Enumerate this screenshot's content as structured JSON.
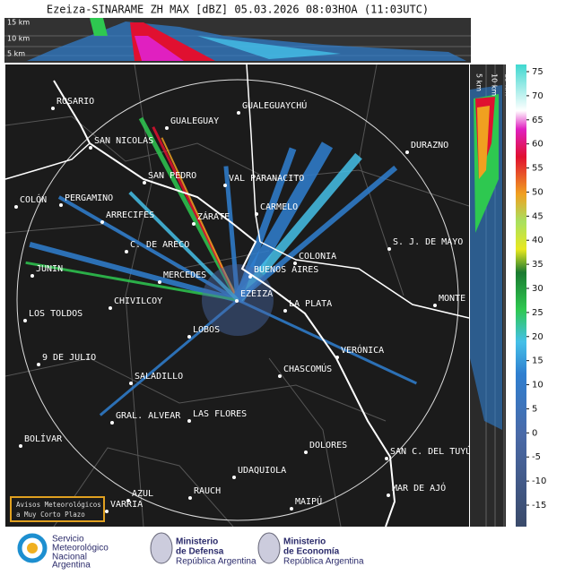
{
  "header": {
    "title": "Ezeiza-SINARAME ZH MAX [dBZ] 05.03.2026 08:03HOA (11:03UTC)"
  },
  "top_panel": {
    "altitudes": [
      "15 km",
      "10 km",
      "5 km"
    ]
  },
  "side_panel": {
    "altitudes": [
      "5 km",
      "10 km",
      "15 km"
    ]
  },
  "cities": [
    "ROSARIO",
    "GUALEGUAYCHÚ",
    "GUALEGUAY",
    "SAN NICOLAS",
    "DURAZNO",
    "SAN PEDRO",
    "VAL PARANACITO",
    "COLÓN",
    "PERGAMINO",
    "CARMELO",
    "ARRECIFES",
    "ZÁRATE",
    "S. J. DE MAYO",
    "C. DE ARECO",
    "COLONIA",
    "BUENOS AIRES",
    "JUNIN",
    "MERCEDES",
    "EZEIZA",
    "MONTE",
    "CHIVILCOY",
    "LA PLATA",
    "LOS TOLDOS",
    "LOBOS",
    "VERÓNICA",
    "9 DE JULIO",
    "CHASCOMÚS",
    "SALADILLO",
    "GRAL. ALVEAR",
    "LAS FLORES",
    "BOLÍVAR",
    "DOLORES",
    "SAN C. DEL TUYÚ",
    "UDAQUIOLA",
    "AZUL",
    "RAUCH",
    "MAR DE AJÓ",
    "MAIPÚ",
    "VARRIA"
  ],
  "notice": [
    "Avisos Meteorológicos",
    "a Muy Corto Plazo"
  ],
  "colorbar": {
    "ticks": [
      75,
      70,
      65,
      60,
      55,
      50,
      45,
      40,
      35,
      30,
      25,
      20,
      15,
      10,
      5,
      0,
      -5,
      -10,
      -15
    ]
  },
  "logos": {
    "smn": [
      "Servicio",
      "Meteorológico",
      "Nacional",
      "Argentina"
    ],
    "defensa": [
      "Ministerio",
      "de Defensa",
      "República Argentina"
    ],
    "economia": [
      "Ministerio",
      "de Economía",
      "República Argentina"
    ]
  }
}
